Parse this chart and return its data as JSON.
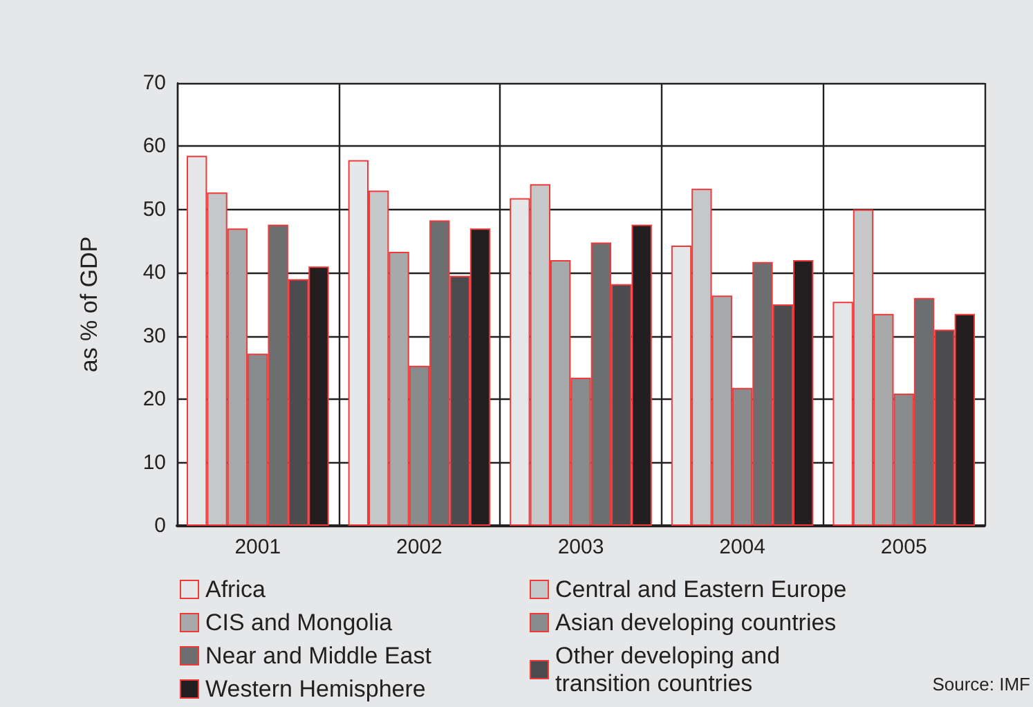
{
  "chart_data": {
    "type": "bar",
    "ylabel": "as % of GDP",
    "categories": [
      "2001",
      "2002",
      "2003",
      "2004",
      "2005"
    ],
    "series": [
      {
        "name": "Africa",
        "color": "#e6e7e8",
        "values": [
          58.5,
          57.8,
          51.8,
          44.3,
          35.4
        ]
      },
      {
        "name": "Central and Eastern Europe",
        "color": "#c6c7c9",
        "values": [
          52.7,
          53,
          54,
          53.3,
          50
        ]
      },
      {
        "name": "CIS and Mongolia",
        "color": "#a8a9ab",
        "values": [
          47,
          43.3,
          42,
          36.4,
          33.5
        ]
      },
      {
        "name": "Asian developing countries",
        "color": "#8a8b8d",
        "values": [
          27.2,
          25.3,
          23.4,
          21.8,
          20.9
        ]
      },
      {
        "name": "Near and Middle East",
        "color": "#6d6e70",
        "values": [
          47.6,
          48.3,
          44.8,
          41.7,
          36
        ]
      },
      {
        "name": "Other developing and transition countries",
        "color": "#4c4c4e",
        "values": [
          39,
          39.5,
          38.2,
          35,
          31
        ]
      },
      {
        "name": "Western Hemisphere",
        "color": "#231f20",
        "values": [
          41,
          47,
          47.6,
          42,
          33.5
        ]
      }
    ],
    "ylim": [
      0,
      70
    ],
    "yticks": [
      0,
      10,
      20,
      30,
      40,
      50,
      60,
      70
    ],
    "grid": true,
    "legend": "bottom",
    "annotations": [
      "Source: IMF"
    ]
  }
}
